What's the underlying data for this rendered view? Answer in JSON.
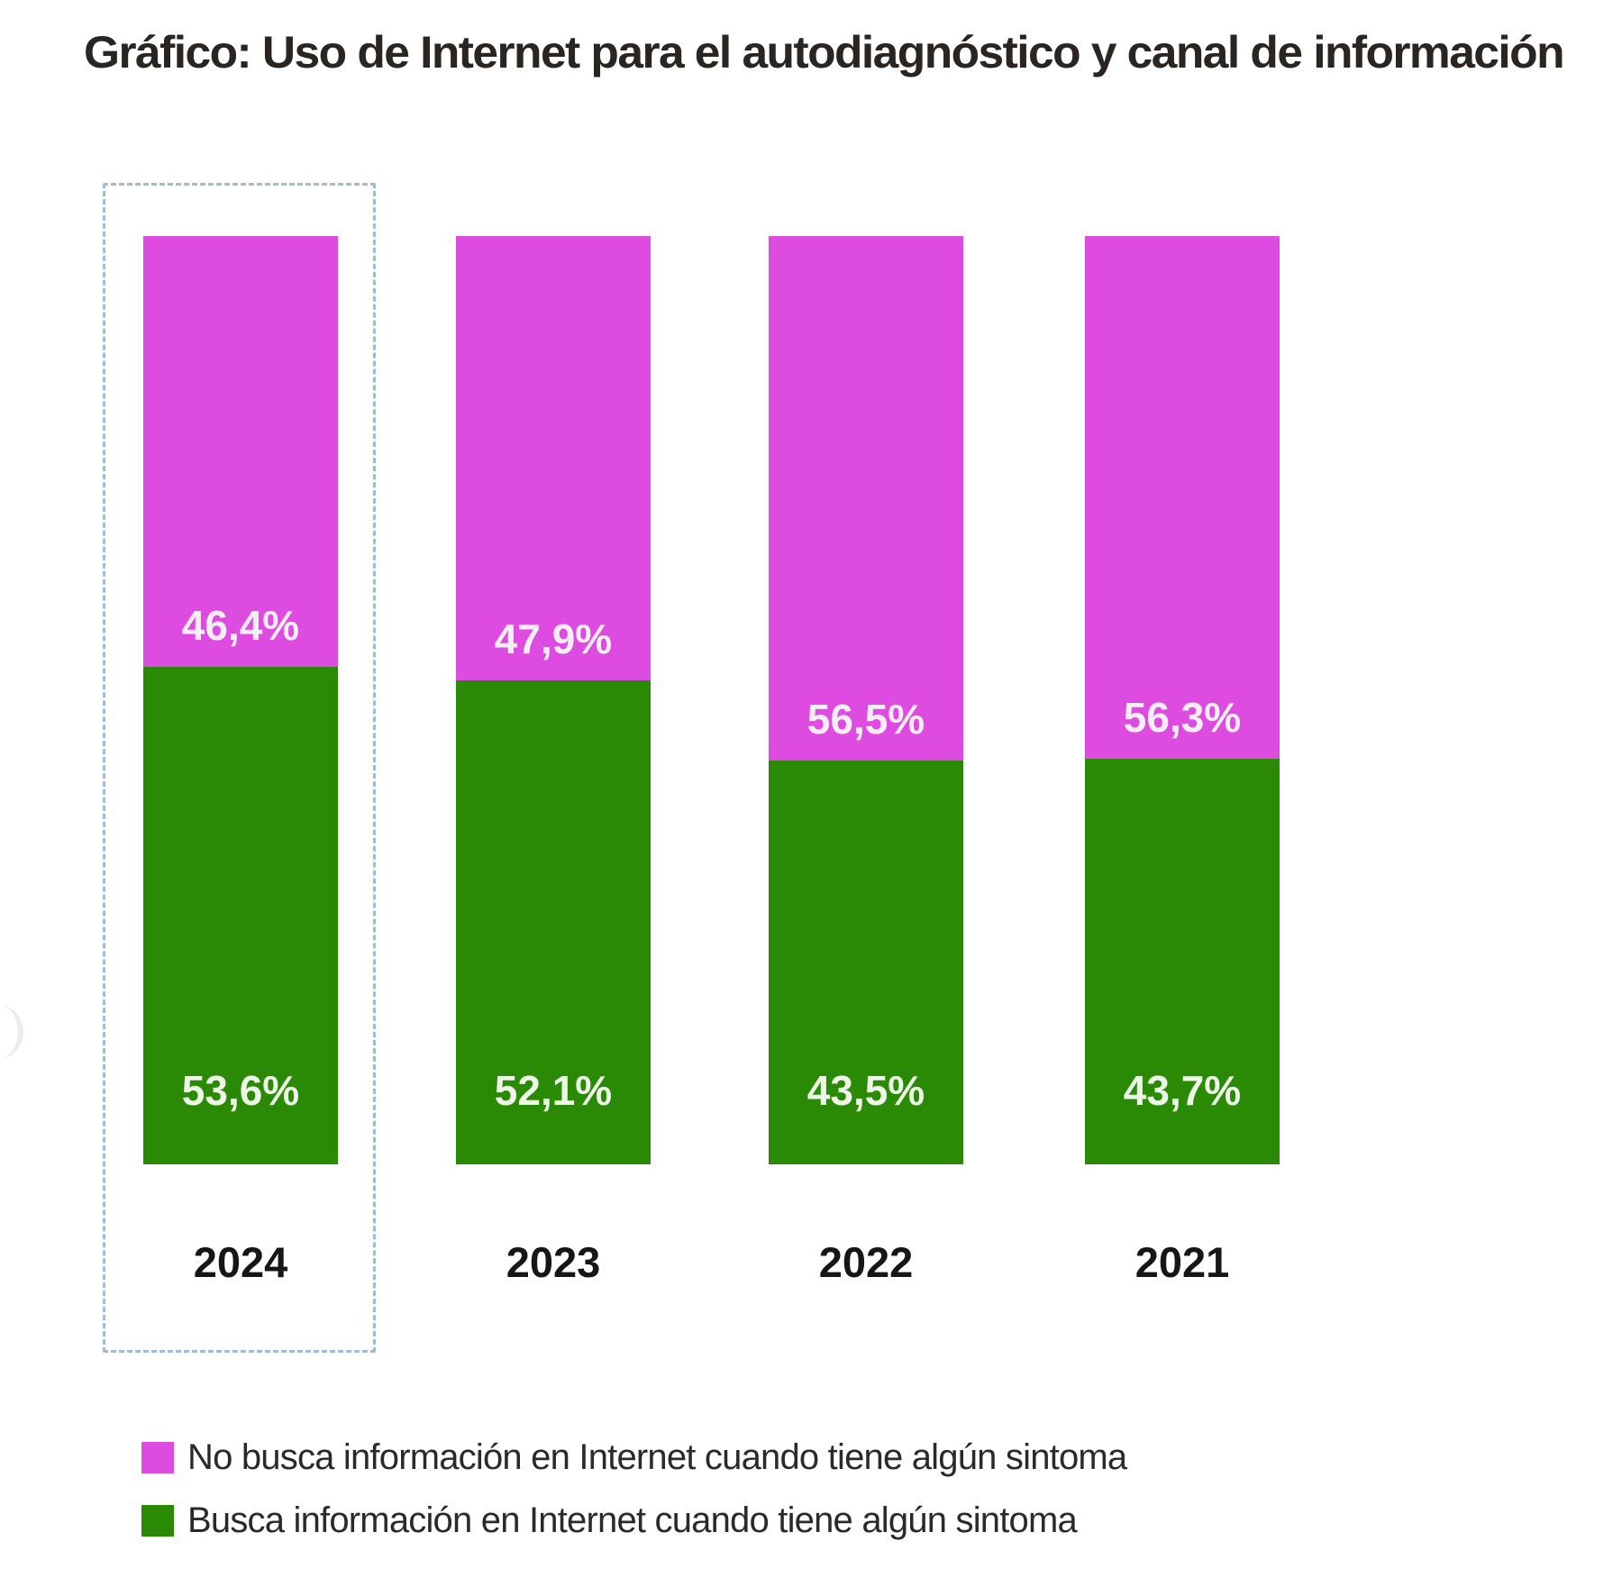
{
  "title": "Gráfico: Uso de Internet para el autodiagnóstico y canal de información",
  "colors": {
    "no_busca": "#DE4BE0",
    "busca": "#2A8A06",
    "highlight_border": "#9DBCD9"
  },
  "highlighted_year": "2024",
  "bars": [
    {
      "year": "2024",
      "no_busca_label": "46,4%",
      "busca_label": "53,6%",
      "no_busca": 46.4,
      "busca": 53.6
    },
    {
      "year": "2023",
      "no_busca_label": "47,9%",
      "busca_label": "52,1%",
      "no_busca": 47.9,
      "busca": 52.1
    },
    {
      "year": "2022",
      "no_busca_label": "56,5%",
      "busca_label": "43,5%",
      "no_busca": 56.5,
      "busca": 43.5
    },
    {
      "year": "2021",
      "no_busca_label": "56,3%",
      "busca_label": "43,7%",
      "no_busca": 56.3,
      "busca": 43.7
    }
  ],
  "legend": [
    {
      "label": "No busca información en Internet cuando tiene algún sintoma",
      "color": "#DE4BE0"
    },
    {
      "label": "Busca información en Internet cuando tiene algún sintoma",
      "color": "#2A8A06"
    }
  ],
  "chart_data": {
    "type": "bar",
    "stacked": true,
    "normalized_100": true,
    "title": "Gráfico: Uso de Internet para el autodiagnóstico y canal de información",
    "categories": [
      "2024",
      "2023",
      "2022",
      "2021"
    ],
    "series": [
      {
        "name": "Busca información en Internet cuando tiene algún sintoma",
        "color": "#2A8A06",
        "values": [
          53.6,
          52.1,
          43.5,
          43.7
        ]
      },
      {
        "name": "No busca información en Internet cuando tiene algún sintoma",
        "color": "#DE4BE0",
        "values": [
          46.4,
          47.9,
          56.5,
          56.3
        ]
      }
    ],
    "xlabel": "",
    "ylabel": "",
    "ylim": [
      0,
      100
    ],
    "grid": false,
    "axes_visible": false,
    "legend_position": "bottom-left",
    "data_labels": true,
    "annotations": [
      "Dashed box highlighting 2024"
    ]
  }
}
